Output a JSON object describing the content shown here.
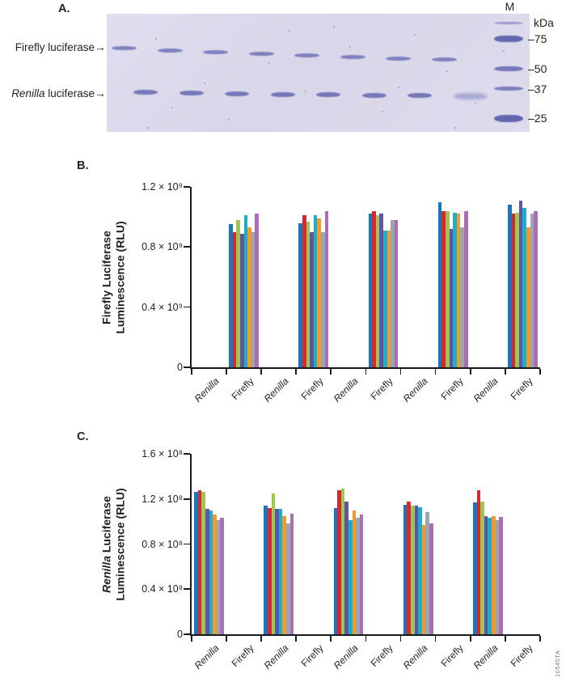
{
  "panel_a": {
    "label": "A.",
    "row_labels": [
      {
        "segments": [
          {
            "t": "Firefly luciferase"
          }
        ],
        "arrow": "→"
      },
      {
        "segments": [
          {
            "t": "Renilla",
            "i": true
          },
          {
            "t": " luciferase"
          }
        ],
        "arrow": "→"
      }
    ],
    "marker_label": "M",
    "unit_label": "kDa",
    "marker_weights": [
      "–75",
      "–50",
      "–37",
      "–25"
    ]
  },
  "watermark": "10545TA",
  "chart_data": [
    {
      "type": "bar",
      "panel_label": "B.",
      "ylabel_lines": [
        [
          {
            "t": "Firefly Luciferase"
          }
        ],
        [
          {
            "t": "Luminescence (RLU)"
          }
        ]
      ],
      "ylim": [
        0,
        1200000000.0
      ],
      "grid": false,
      "legend": "none",
      "y_ticks": [
        {
          "value": 0,
          "label": "0"
        },
        {
          "value": 400000000.0,
          "label": "0.4 × 10⁹"
        },
        {
          "value": 800000000.0,
          "label": "0.8 × 10⁹"
        },
        {
          "value": 1200000000.0,
          "label": "1.2 × 10⁹"
        }
      ],
      "x_tick_labels": [
        {
          "label": "Renilla",
          "italic": true
        },
        {
          "label": "Firefly",
          "italic": false
        },
        {
          "label": "Renilla",
          "italic": true
        },
        {
          "label": "Firefly",
          "italic": false
        },
        {
          "label": "Renilla",
          "italic": true
        },
        {
          "label": "Firefly",
          "italic": false
        },
        {
          "label": "Renilla",
          "italic": true
        },
        {
          "label": "Firefly",
          "italic": false
        },
        {
          "label": "Renilla",
          "italic": true
        },
        {
          "label": "Firefly",
          "italic": false
        }
      ],
      "series_colors": [
        "#1b75bb",
        "#d7282f",
        "#a0c550",
        "#5e55a5",
        "#1cafcb",
        "#f29a2e",
        "#9aa6b0",
        "#ab6db5"
      ],
      "bar_slots": [
        1,
        3,
        5,
        7,
        9
      ],
      "groups": [
        [
          950000000.0,
          900000000.0,
          980000000.0,
          890000000.0,
          1010000000.0,
          930000000.0,
          900000000.0,
          1020000000.0
        ],
        [
          960000000.0,
          1010000000.0,
          970000000.0,
          900000000.0,
          1010000000.0,
          990000000.0,
          900000000.0,
          1040000000.0
        ],
        [
          1020000000.0,
          1040000000.0,
          1010000000.0,
          1020000000.0,
          910000000.0,
          910000000.0,
          980000000.0,
          980000000.0
        ],
        [
          1100000000.0,
          1040000000.0,
          1040000000.0,
          920000000.0,
          1030000000.0,
          1020000000.0,
          930000000.0,
          1040000000.0
        ],
        [
          1080000000.0,
          1020000000.0,
          1030000000.0,
          1110000000.0,
          1060000000.0,
          930000000.0,
          1020000000.0,
          1040000000.0
        ]
      ]
    },
    {
      "type": "bar",
      "panel_label": "C.",
      "ylabel_lines": [
        [
          {
            "t": "Renilla",
            "i": true
          },
          {
            "t": " Luciferase"
          }
        ],
        [
          {
            "t": "Luminescence (RLU)"
          }
        ]
      ],
      "ylim": [
        0,
        160000000.0
      ],
      "grid": false,
      "legend": "none",
      "y_ticks": [
        {
          "value": 0,
          "label": "0"
        },
        {
          "value": 40000000.0,
          "label": "0.4 × 10⁸"
        },
        {
          "value": 80000000.0,
          "label": "0.8 × 10⁸"
        },
        {
          "value": 120000000.0,
          "label": "1.2 × 10⁸"
        },
        {
          "value": 160000000.0,
          "label": "1.6 × 10⁸"
        }
      ],
      "x_tick_labels": [
        {
          "label": "Renilla",
          "italic": true
        },
        {
          "label": "Firefly",
          "italic": false
        },
        {
          "label": "Renilla",
          "italic": true
        },
        {
          "label": "Firefly",
          "italic": false
        },
        {
          "label": "Renilla",
          "italic": true
        },
        {
          "label": "Firefly",
          "italic": false
        },
        {
          "label": "Renilla",
          "italic": true
        },
        {
          "label": "Firefly",
          "italic": false
        },
        {
          "label": "Renilla",
          "italic": true
        },
        {
          "label": "Firefly",
          "italic": false
        }
      ],
      "series_colors": [
        "#1b75bb",
        "#d7282f",
        "#a0c550",
        "#5e55a5",
        "#1cafcb",
        "#f29a2e",
        "#9aa6b0",
        "#ab6db5"
      ],
      "bar_slots": [
        0,
        2,
        4,
        6,
        8
      ],
      "groups": [
        [
          126000000.0,
          128000000.0,
          126000000.0,
          111000000.0,
          110000000.0,
          106000000.0,
          101000000.0,
          103000000.0
        ],
        [
          114000000.0,
          112000000.0,
          125000000.0,
          111000000.0,
          111000000.0,
          105000000.0,
          98000000.0,
          107000000.0
        ],
        [
          112000000.0,
          128000000.0,
          129000000.0,
          118000000.0,
          101000000.0,
          110000000.0,
          103000000.0,
          106000000.0
        ],
        [
          115000000.0,
          118000000.0,
          114000000.0,
          114000000.0,
          113000000.0,
          97000000.0,
          108000000.0,
          98000000.0
        ],
        [
          117000000.0,
          128000000.0,
          118000000.0,
          105000000.0,
          103000000.0,
          105000000.0,
          101000000.0,
          104000000.0
        ]
      ]
    }
  ]
}
